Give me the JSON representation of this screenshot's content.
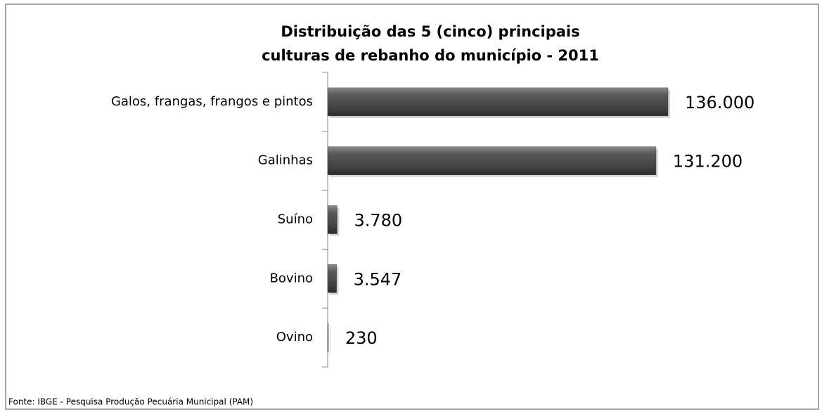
{
  "chart_data": {
    "type": "bar",
    "orientation": "horizontal",
    "title": [
      "Distribuição das 5 (cinco) principais",
      "culturas de rebanho do município - 2011"
    ],
    "categories": [
      "Galos, frangas, frangos e pintos",
      "Galinhas",
      "Suíno",
      "Bovino",
      "Ovino"
    ],
    "values": [
      136000,
      131200,
      3780,
      3547,
      230
    ],
    "value_labels": [
      "136.000",
      "131.200",
      "3.780",
      "3.547",
      "230"
    ],
    "color": "#4d4d4d",
    "source": "Fonte: IBGE - Pesquisa Produção Pecuária Municipal (PAM)"
  }
}
